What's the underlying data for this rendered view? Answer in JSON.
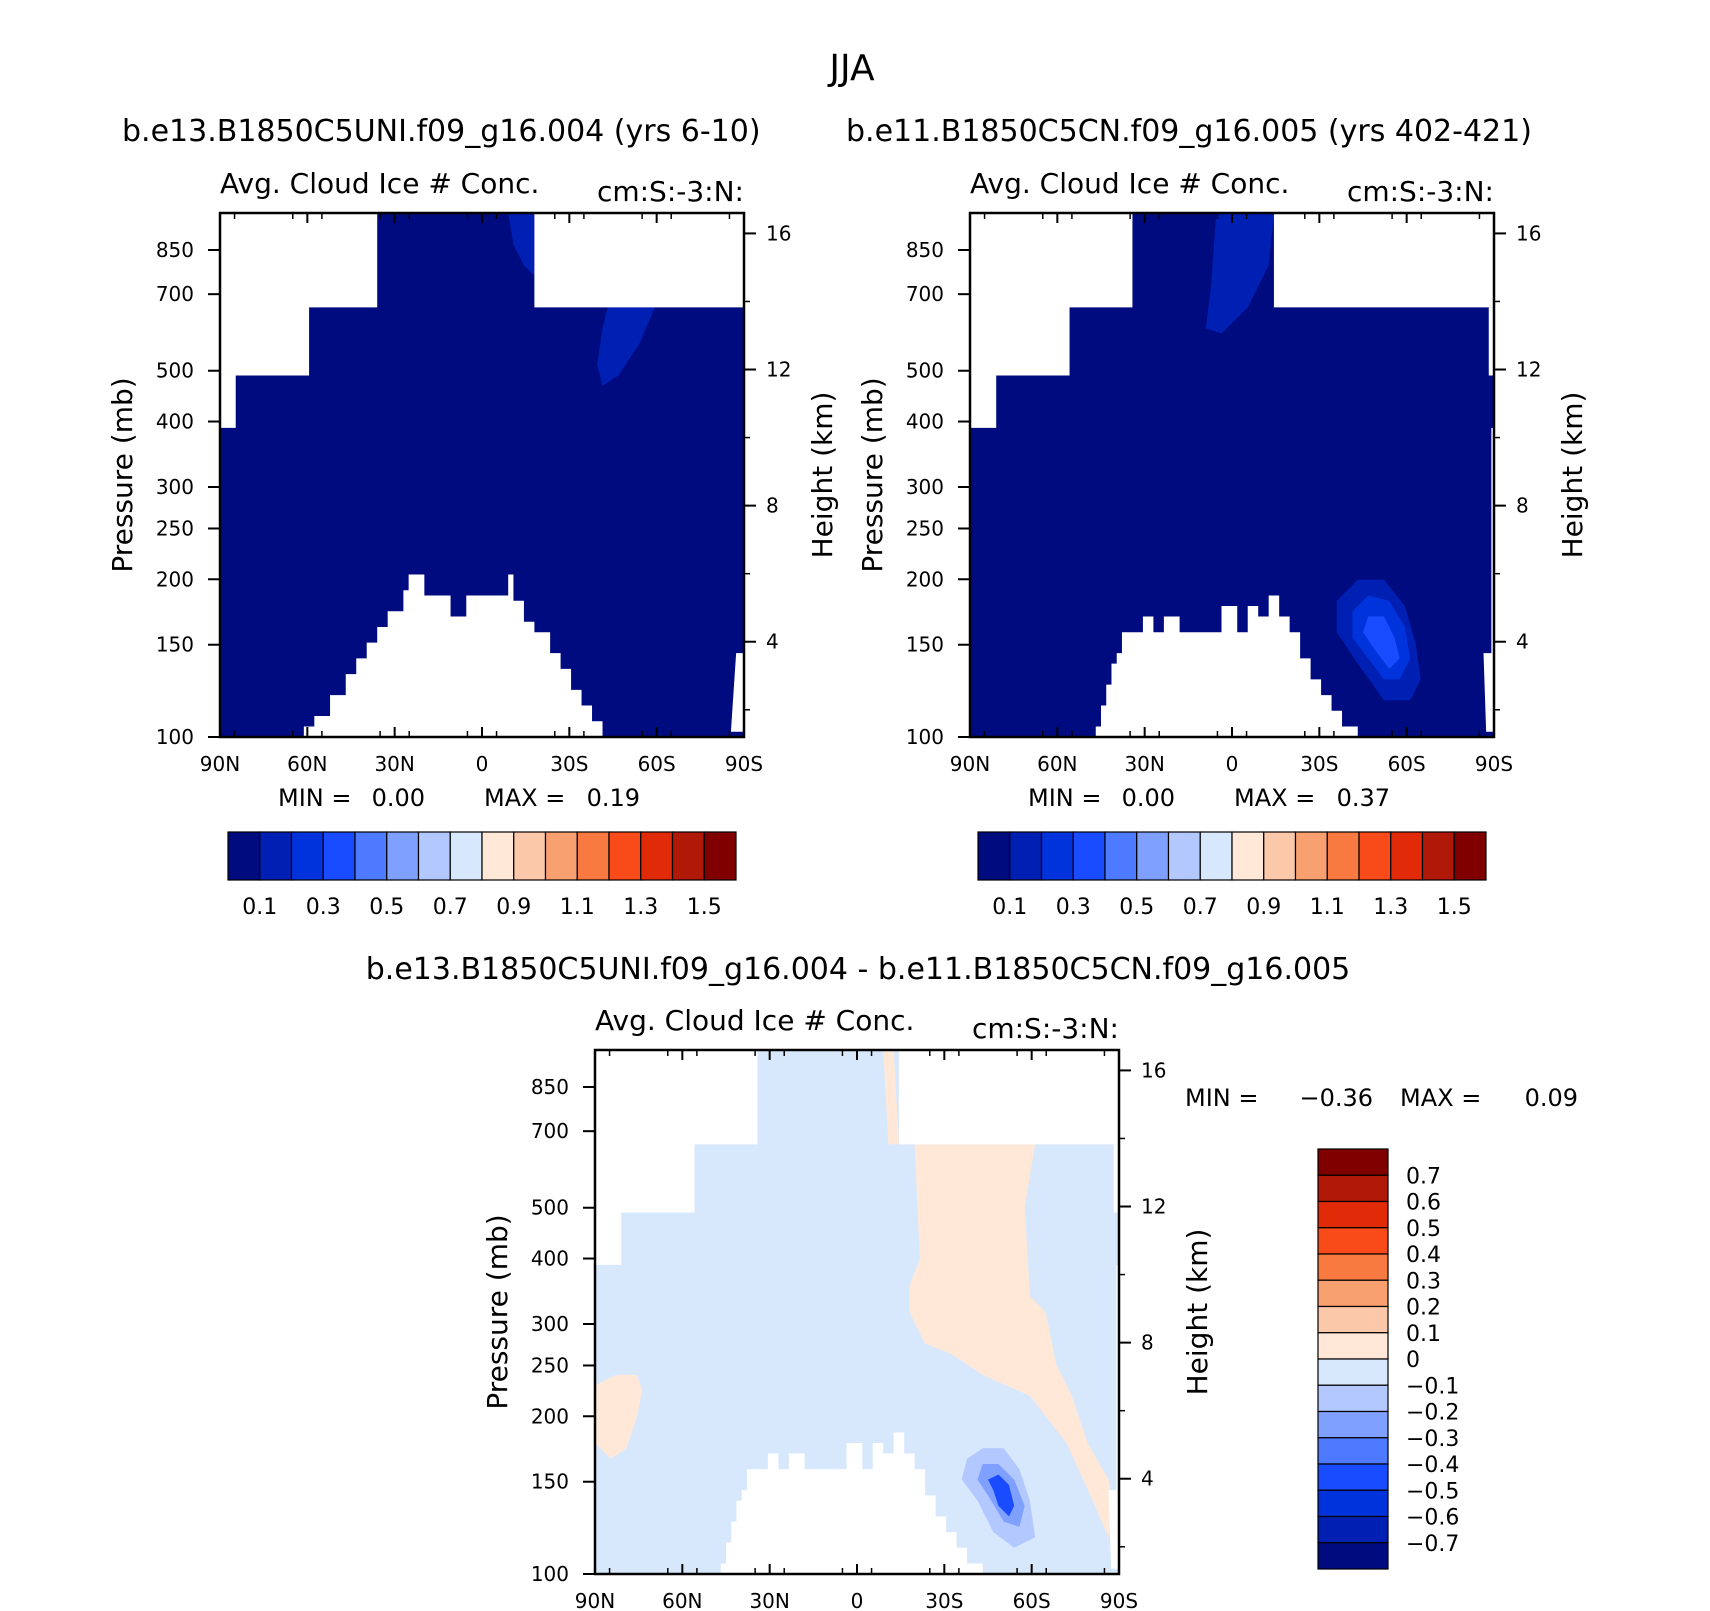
{
  "figure": {
    "title": "JJA",
    "colors": {
      "full": [
        "#000b80",
        "#0020b4",
        "#0033dc",
        "#1a4cff",
        "#4d7aff",
        "#80a0ff",
        "#b3c8ff",
        "#d8e8fc",
        "#ffe8d8",
        "#fcc8aa",
        "#f9a070",
        "#f97a40",
        "#f94a1a",
        "#e02a08",
        "#b01808",
        "#800000"
      ],
      "diff": [
        "#000b80",
        "#0020b4",
        "#0033dc",
        "#1a4cff",
        "#4d7aff",
        "#80a0ff",
        "#b3c8ff",
        "#d8e8fc",
        "#ffe8d8",
        "#fcc8aa",
        "#f9a070",
        "#f97a40",
        "#f94a1a",
        "#e02a08",
        "#b01808",
        "#800000"
      ]
    }
  },
  "chart_data": [
    {
      "type": "heatmap",
      "panel": "top-left",
      "case_title": "b.e13.B1850C5UNI.f09_g16.004 (yrs 6-10)",
      "title": "Avg. Cloud Ice # Conc.",
      "units_label": "cm:S:-3:N:",
      "ylabel": "Pressure (mb)",
      "ylabel_right": "Height (km)",
      "x_ticks": [
        "90N",
        "60N",
        "30N",
        "0",
        "30S",
        "60S",
        "90S"
      ],
      "y_ticks": [
        "100",
        "150",
        "200",
        "250",
        "300",
        "400",
        "500",
        "700",
        "850"
      ],
      "y_ticks_right": [
        "16",
        "12",
        "8",
        "4"
      ],
      "min_label": "MIN =",
      "min_value": "0.00",
      "max_label": "MAX =",
      "max_value": "0.19",
      "colorbar_labels": [
        "0.1",
        "0.3",
        "0.5",
        "0.7",
        "0.9",
        "1.1",
        "1.3",
        "1.5"
      ],
      "colorbar_levels": [
        0.1,
        0.2,
        0.3,
        0.4,
        0.5,
        0.6,
        0.7,
        0.8,
        0.9,
        1.0,
        1.1,
        1.2,
        1.3,
        1.4,
        1.5
      ],
      "field_background_level": 0,
      "features": [
        {
          "name": "upper-ice-streak-1",
          "level": 1
        },
        {
          "name": "upper-ice-streak-2",
          "level": 1
        }
      ]
    },
    {
      "type": "heatmap",
      "panel": "top-right",
      "case_title": "b.e11.B1850C5CN.f09_g16.005 (yrs 402-421)",
      "title": "Avg. Cloud Ice # Conc.",
      "units_label": "cm:S:-3:N:",
      "ylabel": "Pressure (mb)",
      "ylabel_right": "Height (km)",
      "x_ticks": [
        "90N",
        "60N",
        "30N",
        "0",
        "30S",
        "60S",
        "90S"
      ],
      "y_ticks": [
        "100",
        "150",
        "200",
        "250",
        "300",
        "400",
        "500",
        "700",
        "850"
      ],
      "y_ticks_right": [
        "16",
        "12",
        "8",
        "4"
      ],
      "min_label": "MIN =",
      "min_value": "0.00",
      "max_label": "MAX =",
      "max_value": "0.37",
      "colorbar_labels": [
        "0.1",
        "0.3",
        "0.5",
        "0.7",
        "0.9",
        "1.1",
        "1.3",
        "1.5"
      ],
      "colorbar_levels": [
        0.1,
        0.2,
        0.3,
        0.4,
        0.5,
        0.6,
        0.7,
        0.8,
        0.9,
        1.0,
        1.1,
        1.2,
        1.3,
        1.4,
        1.5
      ],
      "field_background_level": 0,
      "features": [
        {
          "name": "upper-ice-streak",
          "level": 1
        },
        {
          "name": "southern-maximum-outer",
          "level": 1
        },
        {
          "name": "southern-maximum-middle",
          "level": 2
        },
        {
          "name": "southern-maximum-core",
          "level": 3
        }
      ]
    },
    {
      "type": "heatmap",
      "panel": "bottom-difference",
      "case_title": "b.e13.B1850C5UNI.f09_g16.004 - b.e11.B1850C5CN.f09_g16.005",
      "title": "Avg. Cloud Ice # Conc.",
      "units_label": "cm:S:-3:N:",
      "ylabel": "Pressure (mb)",
      "ylabel_right": "Height (km)",
      "x_ticks": [
        "90N",
        "60N",
        "30N",
        "0",
        "30S",
        "60S",
        "90S"
      ],
      "y_ticks": [
        "100",
        "150",
        "200",
        "250",
        "300",
        "400",
        "500",
        "700",
        "850"
      ],
      "y_ticks_right": [
        "16",
        "12",
        "8",
        "4"
      ],
      "min_label": "MIN =",
      "min_value": "-0.36",
      "max_label": "MAX =",
      "max_value": "0.09",
      "colorbar_labels": [
        "0.7",
        "0.6",
        "0.5",
        "0.4",
        "0.3",
        "0.2",
        "0.1",
        "0",
        "-0.1",
        "-0.2",
        "-0.3",
        "-0.4",
        "-0.5",
        "-0.6",
        "-0.7"
      ],
      "colorbar_levels": [
        -0.7,
        -0.6,
        -0.5,
        -0.4,
        -0.3,
        -0.2,
        -0.1,
        0,
        0.1,
        0.2,
        0.3,
        0.4,
        0.5,
        0.6,
        0.7
      ],
      "field_background_level": 7,
      "features": [
        {
          "name": "positive-tongue-south",
          "level": 8
        },
        {
          "name": "positive-patch-north",
          "level": 8
        },
        {
          "name": "positive-strip-top",
          "level": 8
        },
        {
          "name": "negative-southern-outer",
          "level": 6
        },
        {
          "name": "negative-southern-middle",
          "level": 5
        },
        {
          "name": "negative-southern-core",
          "level": 3
        }
      ]
    }
  ]
}
